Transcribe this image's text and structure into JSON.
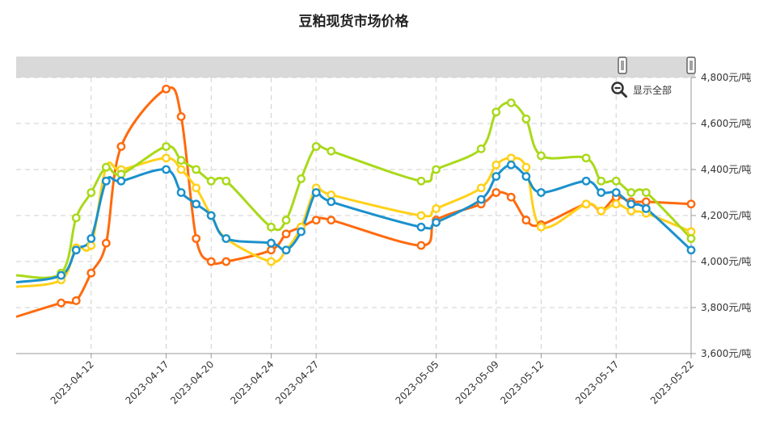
{
  "chart_data": {
    "type": "line",
    "title": "豆粕现货市场价格",
    "xlabel": "",
    "ylabel": "",
    "y_unit_suffix": "元/吨",
    "ylim": [
      3600,
      4800
    ],
    "yticks": [
      3600,
      3800,
      4000,
      4200,
      4400,
      4600,
      4800
    ],
    "y_axis_side": "right",
    "grid": true,
    "zoom_button_label": "显示全部",
    "x_tick_labels": [
      "2023-04-12",
      "2023-04-17",
      "2023-04-20",
      "2023-04-24",
      "2023-04-27",
      "2023-05-05",
      "2023-05-09",
      "2023-05-12",
      "2023-05-17",
      "2023-05-22"
    ],
    "x": [
      "2023-04-07",
      "2023-04-10",
      "2023-04-11",
      "2023-04-12",
      "2023-04-13",
      "2023-04-14",
      "2023-04-17",
      "2023-04-18",
      "2023-04-19",
      "2023-04-20",
      "2023-04-21",
      "2023-04-24",
      "2023-04-25",
      "2023-04-26",
      "2023-04-27",
      "2023-04-28",
      "2023-05-04",
      "2023-05-05",
      "2023-05-08",
      "2023-05-09",
      "2023-05-10",
      "2023-05-11",
      "2023-05-12",
      "2023-05-15",
      "2023-05-16",
      "2023-05-17",
      "2023-05-18",
      "2023-05-19",
      "2023-05-22"
    ],
    "x_axis_start": "2023-04-07",
    "x_axis_end": "2023-05-22",
    "series": [
      {
        "color": "#ff6a0d",
        "values": [
          3760,
          3820,
          3830,
          3950,
          4080,
          4500,
          4750,
          4630,
          4100,
          4000,
          4000,
          4050,
          4120,
          4150,
          4180,
          4180,
          4070,
          4180,
          4250,
          4300,
          4280,
          4180,
          4160,
          4250,
          4220,
          4280,
          4260,
          4260,
          4250
        ]
      },
      {
        "color": "#ffd11a",
        "values": [
          3890,
          3920,
          4060,
          4070,
          4410,
          4400,
          4450,
          4400,
          4320,
          4200,
          4100,
          4000,
          4050,
          4150,
          4320,
          4290,
          4200,
          4230,
          4320,
          4420,
          4450,
          4410,
          4150,
          4250,
          4220,
          4250,
          4220,
          4210,
          4130
        ]
      },
      {
        "color": "#a9d91a",
        "values": [
          3940,
          3950,
          4190,
          4300,
          4410,
          4380,
          4500,
          4440,
          4400,
          4350,
          4350,
          4150,
          4180,
          4360,
          4500,
          4480,
          4350,
          4400,
          4490,
          4650,
          4690,
          4620,
          4460,
          4450,
          4350,
          4350,
          4300,
          4300,
          4100
        ]
      },
      {
        "color": "#1a91cc",
        "values": [
          3910,
          3940,
          4050,
          4100,
          4350,
          4350,
          4400,
          4300,
          4250,
          4200,
          4100,
          4080,
          4050,
          4130,
          4300,
          4260,
          4150,
          4170,
          4270,
          4370,
          4420,
          4370,
          4300,
          4350,
          4300,
          4300,
          4250,
          4230,
          4050
        ]
      }
    ]
  }
}
